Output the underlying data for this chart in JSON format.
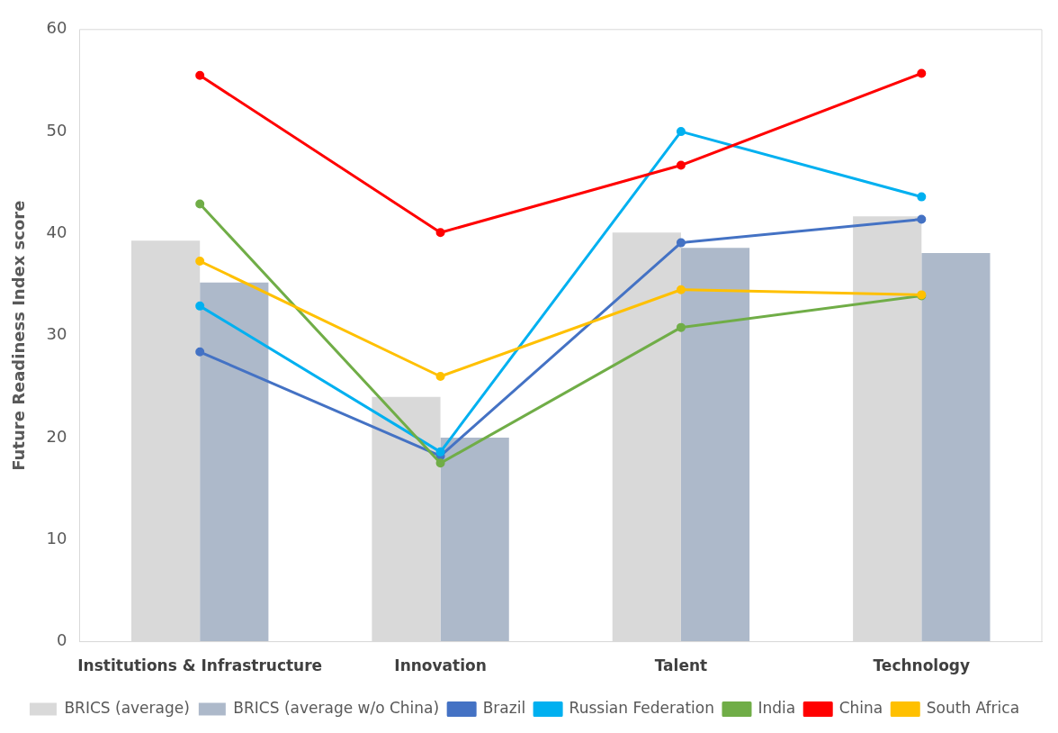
{
  "chart_data": {
    "type": "bar",
    "ylabel": "Future Readiness Index score",
    "categories": [
      "Institutions & Infrastructure",
      "Innovation",
      "Talent",
      "Technology"
    ],
    "series": [
      {
        "name": "BRICS (average)",
        "color": "#d9d9d9",
        "values": [
          39.3,
          24.0,
          40.1,
          41.7
        ]
      },
      {
        "name": "BRICS (average w/o China)",
        "color": "#adb9ca",
        "values": [
          35.2,
          20.0,
          38.6,
          38.1
        ]
      },
      {
        "name": "Brazil",
        "type": "line",
        "color": "#4472c4",
        "values": [
          28.4,
          18.2,
          39.1,
          41.4
        ]
      },
      {
        "name": "Russian Federation",
        "type": "line",
        "color": "#00b0f0",
        "values": [
          32.9,
          18.6,
          50.0,
          43.6
        ]
      },
      {
        "name": "India",
        "type": "line",
        "color": "#70ad47",
        "values": [
          42.9,
          17.5,
          30.8,
          33.9
        ]
      },
      {
        "name": "China",
        "type": "line",
        "color": "#ff0000",
        "values": [
          55.5,
          40.1,
          46.7,
          55.7
        ]
      },
      {
        "name": "South Africa",
        "type": "line",
        "color": "#ffc000",
        "values": [
          37.3,
          26.0,
          34.5,
          34.0
        ]
      }
    ],
    "ylim": [
      0,
      60
    ],
    "yticks": [
      0,
      10,
      20,
      30,
      40,
      50,
      60
    ],
    "grid": false,
    "legend": "bottom",
    "marker": "circle"
  }
}
